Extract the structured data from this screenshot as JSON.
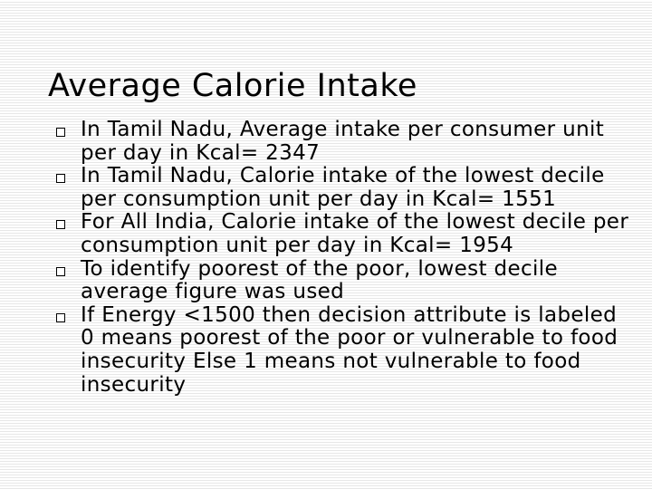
{
  "slide": {
    "title": "Average Calorie Intake",
    "bullets": [
      {
        "text": "In Tamil Nadu, Average intake per consumer unit per day in Kcal= 2347"
      },
      {
        "text": "In Tamil Nadu, Calorie intake of the lowest decile per consumption unit per day in Kcal= 1551"
      },
      {
        "text": "For All India, Calorie intake of the lowest decile per consumption unit per day in Kcal= 1954"
      },
      {
        "text": "To identify poorest of the poor, lowest decile average figure was used"
      },
      {
        "text": "If Energy <1500 then decision attribute is labeled 0 means poorest of the poor or vulnerable to food insecurity Else 1 means not vulnerable to food insecurity"
      }
    ],
    "marker_icon": "hollow-square-bullet-icon",
    "colors": {
      "text": "#000000",
      "background": "#ffffff",
      "stripe": "#e7e7e7"
    }
  }
}
